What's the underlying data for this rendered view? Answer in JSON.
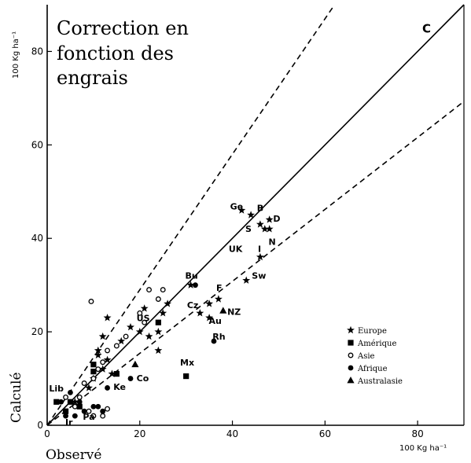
{
  "chart_data": {
    "type": "scatter",
    "title_lines": [
      "Correction en",
      "fonction des",
      "engrais"
    ],
    "xlabel": "Observé",
    "ylabel": "Calculé",
    "x_unit": "100 Kg ha⁻¹",
    "y_unit": "100 Kg ha⁻¹",
    "xlim": [
      0,
      90
    ],
    "ylim": [
      0,
      90
    ],
    "xticks": [
      0,
      20,
      40,
      60,
      80
    ],
    "yticks": [
      0,
      20,
      40,
      60,
      80
    ],
    "xtick_labels": [
      "0",
      "20",
      "40",
      "60",
      "80"
    ],
    "ytick_labels": [
      "0",
      "20",
      "40",
      "60",
      "80"
    ],
    "grid": false,
    "legend_position": "bottom-right",
    "lines": [
      {
        "style": "solid",
        "slope": 1.0,
        "label": "C"
      },
      {
        "style": "dashed",
        "slope": 1.45,
        "label": ""
      },
      {
        "style": "dashed",
        "slope": 0.77,
        "label": ""
      }
    ],
    "legend": [
      {
        "marker": "star",
        "label": "Europe"
      },
      {
        "marker": "square",
        "label": "Amérique"
      },
      {
        "marker": "open-circle",
        "label": "Asie"
      },
      {
        "marker": "filled-circle",
        "label": "Afrique"
      },
      {
        "marker": "triangle",
        "label": "Australasie"
      }
    ],
    "series": [
      {
        "marker": "star",
        "points": [
          [
            42,
            46
          ],
          [
            44,
            45
          ],
          [
            46,
            43
          ],
          [
            47,
            42
          ],
          [
            48,
            44
          ],
          [
            48,
            42
          ],
          [
            46,
            36
          ],
          [
            43,
            31
          ],
          [
            37,
            27
          ],
          [
            35,
            26
          ],
          [
            35,
            23
          ],
          [
            33,
            24
          ],
          [
            31,
            30
          ],
          [
            26,
            26
          ],
          [
            25,
            24
          ],
          [
            24,
            20
          ],
          [
            22,
            19
          ],
          [
            21,
            25
          ],
          [
            20,
            20
          ],
          [
            18,
            21
          ],
          [
            16,
            18
          ],
          [
            13,
            23
          ],
          [
            12,
            19
          ],
          [
            11,
            16
          ],
          [
            11,
            15
          ],
          [
            13,
            14
          ],
          [
            12,
            12
          ],
          [
            14,
            11
          ],
          [
            10,
            10
          ],
          [
            9,
            8
          ],
          [
            6,
            5
          ],
          [
            24,
            16
          ]
        ]
      },
      {
        "marker": "square",
        "points": [
          [
            24,
            22
          ],
          [
            30,
            10.5
          ],
          [
            10,
            13
          ],
          [
            15,
            11
          ],
          [
            5,
            5
          ],
          [
            4,
            3
          ],
          [
            7,
            4
          ],
          [
            2,
            5
          ],
          [
            10,
            11.5
          ]
        ]
      },
      {
        "marker": "open-circle",
        "points": [
          [
            9.5,
            26.5
          ],
          [
            22,
            29
          ],
          [
            24,
            27
          ],
          [
            25,
            29
          ],
          [
            20,
            24
          ],
          [
            21,
            22
          ],
          [
            17,
            19
          ],
          [
            15,
            17
          ],
          [
            13,
            16
          ],
          [
            12,
            13.5
          ],
          [
            11,
            12
          ],
          [
            10,
            10
          ],
          [
            8,
            9
          ],
          [
            7,
            6
          ],
          [
            6,
            4
          ],
          [
            9,
            3
          ],
          [
            10,
            2
          ],
          [
            12,
            2
          ],
          [
            13,
            3.5
          ],
          [
            4,
            6
          ]
        ]
      },
      {
        "marker": "filled-circle",
        "points": [
          [
            32,
            30
          ],
          [
            36,
            18
          ],
          [
            18,
            10
          ],
          [
            13,
            8
          ],
          [
            5,
            7
          ],
          [
            3,
            5
          ],
          [
            4,
            2
          ],
          [
            6,
            2
          ],
          [
            8,
            3
          ],
          [
            10,
            4
          ],
          [
            11,
            4
          ],
          [
            12,
            3
          ],
          [
            7,
            5
          ]
        ]
      },
      {
        "marker": "triangle",
        "points": [
          [
            38,
            24.5
          ],
          [
            19,
            13
          ]
        ]
      }
    ],
    "annotations": [
      {
        "text": "Ge",
        "x": 39.5,
        "y": 46.2
      },
      {
        "text": "B",
        "x": 45.3,
        "y": 45.8
      },
      {
        "text": "D",
        "x": 48.8,
        "y": 43.6
      },
      {
        "text": "S",
        "x": 42.8,
        "y": 41.4
      },
      {
        "text": "N",
        "x": 47.8,
        "y": 38.6
      },
      {
        "text": "UK",
        "x": 39.2,
        "y": 37.1
      },
      {
        "text": "I",
        "x": 45.5,
        "y": 37.1
      },
      {
        "text": "Sw",
        "x": 44.2,
        "y": 31.4
      },
      {
        "text": "Bu",
        "x": 29.8,
        "y": 31.4
      },
      {
        "text": "F",
        "x": 36.5,
        "y": 28.8
      },
      {
        "text": "Cz",
        "x": 30.2,
        "y": 25.1
      },
      {
        "text": "NZ",
        "x": 38.9,
        "y": 23.6
      },
      {
        "text": "Au",
        "x": 34.9,
        "y": 21.7
      },
      {
        "text": "Rh",
        "x": 35.7,
        "y": 18.3
      },
      {
        "text": "US",
        "x": 19.3,
        "y": 22.3
      },
      {
        "text": "Mx",
        "x": 28.7,
        "y": 12.8
      },
      {
        "text": "Co",
        "x": 19.3,
        "y": 9.4
      },
      {
        "text": "Ke",
        "x": 14.3,
        "y": 7.6
      },
      {
        "text": "Lib",
        "x": 0.4,
        "y": 7.2
      },
      {
        "text": "Pa",
        "x": 7.7,
        "y": 1.2
      },
      {
        "text": "Ir",
        "x": 3.9,
        "y": 0.0
      }
    ]
  }
}
